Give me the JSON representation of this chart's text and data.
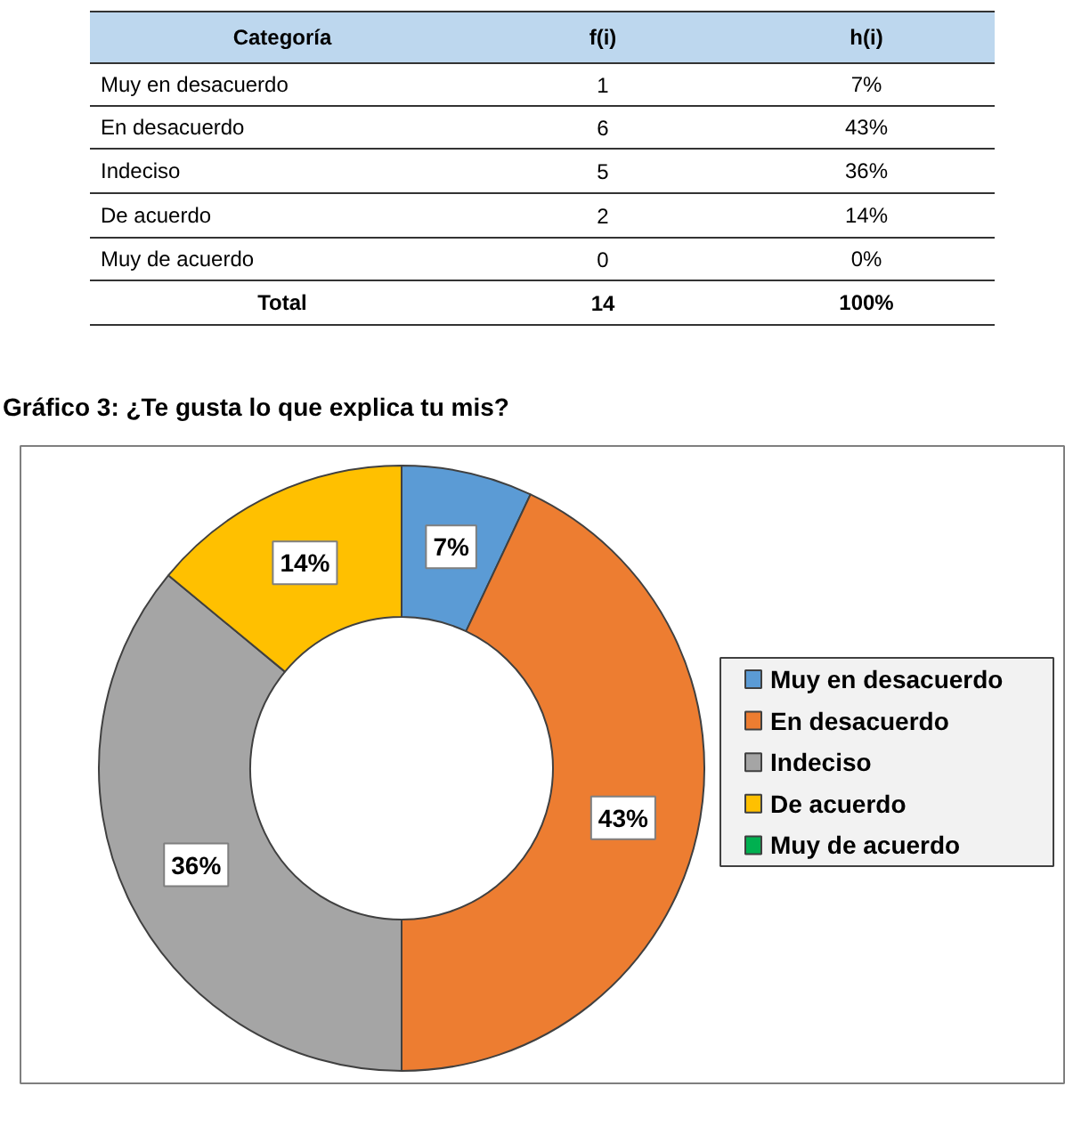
{
  "chart_data": {
    "type": "donut",
    "title": "Gráfico 3: ¿Te gusta lo que explica tu mis?",
    "categories": [
      "Muy en desacuerdo",
      "En desacuerdo",
      "Indeciso",
      "De acuerdo",
      "Muy de acuerdo"
    ],
    "values": [
      7,
      43,
      36,
      14,
      0
    ],
    "value_labels": [
      "7%",
      "43%",
      "36%",
      "14%",
      "0%"
    ],
    "colors": [
      "#5b9bd5",
      "#ed7d31",
      "#a5a5a5",
      "#ffc000",
      "#00b050"
    ],
    "totals": [
      "14",
      "100%"
    ],
    "annotations": [
      "Categoría",
      "f(i)",
      "h(i)",
      "Total",
      "1",
      "6",
      "5",
      "2",
      "0"
    ],
    "legend": "right"
  }
}
